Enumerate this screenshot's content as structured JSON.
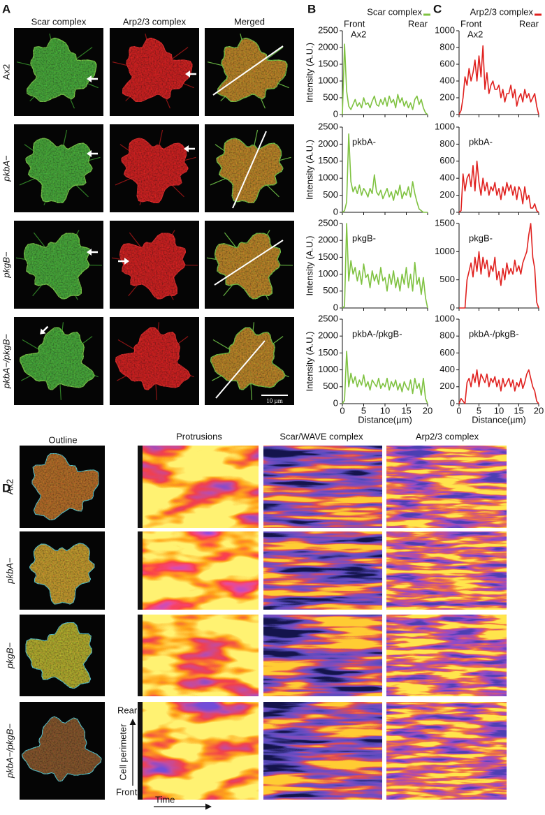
{
  "panel_labels": [
    "A",
    "B",
    "C",
    "D"
  ],
  "panel_a": {
    "columns": [
      "Scar complex",
      "Arp2/3 complex",
      "Merged"
    ],
    "rows": [
      "Ax2",
      "pkbA−",
      "pkgB−",
      "pkbA−/pkgB−"
    ],
    "scale_bar": "10 µm"
  },
  "chart_data": [
    {
      "type": "line",
      "title": "Ax2",
      "legend": "Scar complex",
      "annotations": [
        "Front",
        "Rear"
      ],
      "ylabel": "Intensity (A.U.)",
      "color": "#7fc241",
      "x": [
        0,
        0.5,
        1,
        1.5,
        2,
        2.5,
        3,
        3.5,
        4,
        4.5,
        5,
        5.5,
        6,
        6.5,
        7,
        7.5,
        8,
        8.5,
        9,
        9.5,
        10,
        10.5,
        11,
        11.5,
        12,
        12.5,
        13,
        13.5,
        14,
        14.5,
        15,
        15.5,
        16,
        16.5,
        17,
        17.5,
        18,
        18.5,
        19,
        19.5,
        20
      ],
      "values": [
        0,
        2100,
        700,
        250,
        150,
        300,
        450,
        250,
        350,
        200,
        500,
        300,
        350,
        200,
        400,
        550,
        300,
        250,
        450,
        300,
        500,
        250,
        550,
        350,
        450,
        200,
        600,
        350,
        500,
        250,
        400,
        200,
        350,
        150,
        450,
        550,
        300,
        450,
        200,
        50,
        0
      ],
      "xlim": [
        0,
        20
      ],
      "xticks": [
        0,
        5,
        10,
        15,
        20
      ],
      "ylim": [
        0,
        2500
      ],
      "yticks": [
        0,
        500,
        1000,
        1500,
        2000,
        2500
      ]
    },
    {
      "type": "line",
      "title": "pkbA-",
      "ylabel": "Intensity (A.U.)",
      "color": "#7fc241",
      "x": [
        0,
        0.5,
        1,
        1.5,
        2,
        2.5,
        3,
        3.5,
        4,
        4.5,
        5,
        5.5,
        6,
        6.5,
        7,
        7.5,
        8,
        8.5,
        9,
        9.5,
        10,
        10.5,
        11,
        11.5,
        12,
        12.5,
        13,
        13.5,
        14,
        14.5,
        15,
        15.5,
        16,
        16.5,
        17,
        17.5,
        18,
        18.5,
        19,
        19.5,
        20
      ],
      "values": [
        0,
        50,
        300,
        2300,
        900,
        600,
        750,
        550,
        800,
        500,
        700,
        600,
        450,
        700,
        550,
        1100,
        600,
        500,
        650,
        400,
        550,
        700,
        450,
        600,
        350,
        650,
        500,
        800,
        400,
        600,
        500,
        750,
        450,
        900,
        550,
        300,
        100,
        50,
        0,
        0,
        0
      ],
      "xlim": [
        0,
        20
      ],
      "xticks": [
        0,
        5,
        10,
        15,
        20
      ],
      "ylim": [
        0,
        2500
      ],
      "yticks": [
        0,
        500,
        1000,
        1500,
        2000,
        2500
      ]
    },
    {
      "type": "line",
      "title": "pkgB-",
      "ylabel": "Intensity (A.U.)",
      "color": "#7fc241",
      "x": [
        0,
        0.5,
        1,
        1.5,
        2,
        2.5,
        3,
        3.5,
        4,
        4.5,
        5,
        5.5,
        6,
        6.5,
        7,
        7.5,
        8,
        8.5,
        9,
        9.5,
        10,
        10.5,
        11,
        11.5,
        12,
        12.5,
        13,
        13.5,
        14,
        14.5,
        15,
        15.5,
        16,
        16.5,
        17,
        17.5,
        18,
        18.5,
        19,
        19.5,
        20
      ],
      "values": [
        0,
        50,
        2500,
        800,
        1400,
        1000,
        1200,
        800,
        1100,
        700,
        1300,
        900,
        1000,
        600,
        1100,
        800,
        1000,
        700,
        1200,
        800,
        900,
        500,
        1000,
        700,
        1100,
        600,
        900,
        500,
        1000,
        700,
        1200,
        600,
        1000,
        500,
        1350,
        700,
        900,
        400,
        900,
        300,
        0
      ],
      "xlim": [
        0,
        20
      ],
      "xticks": [
        0,
        5,
        10,
        15,
        20
      ],
      "ylim": [
        0,
        2500
      ],
      "yticks": [
        0,
        500,
        1000,
        1500,
        2000,
        2500
      ]
    },
    {
      "type": "line",
      "title": "pkbA-/pkgB-",
      "ylabel": "Intensity (A.U.)",
      "xlabel": "Distance(µm)",
      "color": "#7fc241",
      "x": [
        0,
        0.5,
        1,
        1.5,
        2,
        2.5,
        3,
        3.5,
        4,
        4.5,
        5,
        5.5,
        6,
        6.5,
        7,
        7.5,
        8,
        8.5,
        9,
        9.5,
        10,
        10.5,
        11,
        11.5,
        12,
        12.5,
        13,
        13.5,
        14,
        14.5,
        15,
        15.5,
        16,
        16.5,
        17,
        17.5,
        18,
        18.5,
        19,
        19.5,
        20
      ],
      "values": [
        0,
        100,
        1550,
        500,
        900,
        600,
        800,
        500,
        700,
        550,
        850,
        500,
        650,
        400,
        700,
        600,
        500,
        750,
        450,
        600,
        500,
        750,
        400,
        650,
        500,
        700,
        400,
        600,
        350,
        650,
        500,
        400,
        700,
        300,
        750,
        450,
        600,
        250,
        750,
        150,
        0
      ],
      "xlim": [
        0,
        20
      ],
      "xticks": [
        0,
        5,
        10,
        15,
        20
      ],
      "ylim": [
        0,
        2500
      ],
      "yticks": [
        0,
        500,
        1000,
        1500,
        2000,
        2500
      ]
    },
    {
      "type": "line",
      "title": "Ax2",
      "legend": "Arp2/3 complex",
      "annotations": [
        "Front",
        "Rear"
      ],
      "color": "#e0211f",
      "x": [
        0,
        0.5,
        1,
        1.5,
        2,
        2.5,
        3,
        3.5,
        4,
        4.5,
        5,
        5.5,
        6,
        6.5,
        7,
        7.5,
        8,
        8.5,
        9,
        9.5,
        10,
        10.5,
        11,
        11.5,
        12,
        12.5,
        13,
        13.5,
        14,
        14.5,
        15,
        15.5,
        16,
        16.5,
        17,
        17.5,
        18,
        18.5,
        19,
        19.5,
        20
      ],
      "values": [
        0,
        50,
        200,
        450,
        350,
        550,
        400,
        500,
        650,
        400,
        700,
        450,
        820,
        300,
        500,
        250,
        350,
        400,
        300,
        300,
        350,
        200,
        300,
        150,
        250,
        250,
        350,
        200,
        300,
        100,
        200,
        250,
        150,
        300,
        200,
        250,
        150,
        200,
        250,
        100,
        0
      ],
      "xlim": [
        0,
        20
      ],
      "xticks": [
        0,
        5,
        10,
        15,
        20
      ],
      "ylim": [
        0,
        1000
      ],
      "yticks": [
        0,
        200,
        400,
        600,
        800,
        1000
      ]
    },
    {
      "type": "line",
      "title": "pkbA-",
      "color": "#e0211f",
      "x": [
        0,
        0.5,
        1,
        1.5,
        2,
        2.5,
        3,
        3.5,
        4,
        4.5,
        5,
        5.5,
        6,
        6.5,
        7,
        7.5,
        8,
        8.5,
        9,
        9.5,
        10,
        10.5,
        11,
        11.5,
        12,
        12.5,
        13,
        13.5,
        14,
        14.5,
        15,
        15.5,
        16,
        16.5,
        17,
        17.5,
        18,
        18.5,
        19,
        19.5,
        20
      ],
      "values": [
        0,
        20,
        450,
        250,
        400,
        450,
        300,
        550,
        250,
        600,
        350,
        200,
        400,
        250,
        350,
        200,
        300,
        250,
        350,
        200,
        280,
        150,
        300,
        200,
        350,
        250,
        320,
        200,
        300,
        150,
        300,
        250,
        100,
        300,
        150,
        200,
        50,
        50,
        100,
        20,
        0
      ],
      "xlim": [
        0,
        20
      ],
      "xticks": [
        0,
        5,
        10,
        15,
        20
      ],
      "ylim": [
        0,
        1000
      ],
      "yticks": [
        0,
        200,
        400,
        600,
        800,
        1000
      ]
    },
    {
      "type": "line",
      "title": "pkgB-",
      "color": "#e0211f",
      "x": [
        0,
        0.5,
        1,
        1.5,
        2,
        2.5,
        3,
        3.5,
        4,
        4.5,
        5,
        5.5,
        6,
        6.5,
        7,
        7.5,
        8,
        8.5,
        9,
        9.5,
        10,
        10.5,
        11,
        11.5,
        12,
        12.5,
        13,
        13.5,
        14,
        14.5,
        15,
        15.5,
        16,
        16.5,
        17,
        17.5,
        18,
        18.5,
        19,
        19.5,
        20
      ],
      "values": [
        0,
        0,
        0,
        0,
        500,
        650,
        800,
        550,
        900,
        650,
        1000,
        600,
        900,
        700,
        850,
        550,
        750,
        650,
        900,
        500,
        650,
        400,
        700,
        500,
        800,
        600,
        700,
        600,
        850,
        650,
        750,
        600,
        800,
        900,
        1000,
        1300,
        1500,
        900,
        700,
        100,
        0
      ],
      "xlim": [
        0,
        20
      ],
      "xticks": [
        0,
        5,
        10,
        15,
        20
      ],
      "ylim": [
        0,
        1500
      ],
      "yticks": [
        0,
        500,
        1000,
        1500
      ]
    },
    {
      "type": "line",
      "title": "pkbA-/pkgB-",
      "xlabel": "Distance(µm)",
      "color": "#e0211f",
      "x": [
        0,
        0.5,
        1,
        1.5,
        2,
        2.5,
        3,
        3.5,
        4,
        4.5,
        5,
        5.5,
        6,
        6.5,
        7,
        7.5,
        8,
        8.5,
        9,
        9.5,
        10,
        10.5,
        11,
        11.5,
        12,
        12.5,
        13,
        13.5,
        14,
        14.5,
        15,
        15.5,
        16,
        16.5,
        17,
        17.5,
        18,
        18.5,
        19,
        19.5,
        20
      ],
      "values": [
        0,
        60,
        30,
        0,
        250,
        300,
        200,
        350,
        250,
        400,
        200,
        350,
        300,
        250,
        350,
        200,
        300,
        250,
        320,
        200,
        280,
        150,
        300,
        200,
        250,
        300,
        200,
        280,
        150,
        250,
        200,
        300,
        180,
        250,
        350,
        400,
        300,
        200,
        150,
        30,
        0
      ],
      "xlim": [
        0,
        20
      ],
      "xticks": [
        0,
        5,
        10,
        15,
        20
      ],
      "ylim": [
        0,
        1000
      ],
      "yticks": [
        0,
        200,
        400,
        600,
        800,
        1000
      ]
    }
  ],
  "panel_d": {
    "columns": [
      "Outline",
      "Protrusions",
      "Scar/WAVE complex",
      "Arp2/3 complex"
    ],
    "rows": [
      "Ax2",
      "pkbA−",
      "pkgB−",
      "pkbA−/pkgB−"
    ],
    "y_top": "Rear",
    "y_axis_label": "Cell perimeter",
    "y_bottom": "Front",
    "x_axis_label": "Time"
  }
}
